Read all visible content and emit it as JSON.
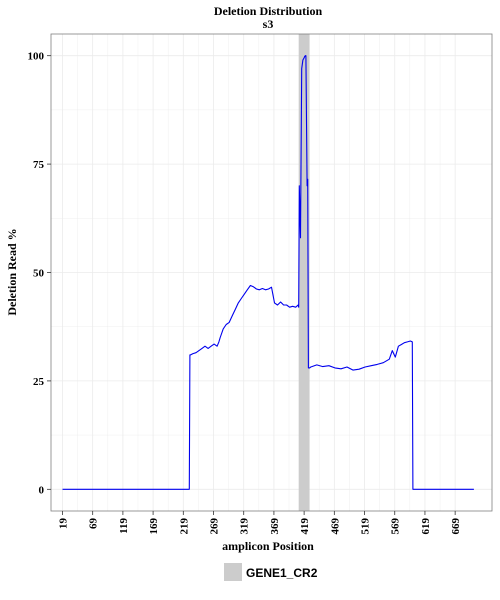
{
  "chart_data": {
    "type": "line",
    "title": "Deletion Distribution",
    "subtitle": "s3",
    "xlabel": "amplicon Position",
    "ylabel": "Deletion Read %",
    "xlim": [
      0,
      730
    ],
    "ylim": [
      -5,
      105
    ],
    "x_ticks": [
      19,
      69,
      119,
      169,
      219,
      269,
      319,
      369,
      419,
      469,
      519,
      569,
      619,
      669
    ],
    "y_ticks": [
      0,
      25,
      50,
      75,
      100
    ],
    "grid": true,
    "legend_position": "bottom",
    "colors": {
      "line": "#0000ee",
      "region": "#cccccc",
      "grid": "#ebebeb",
      "panel_border": "#7f7f7f"
    },
    "regions": [
      {
        "name": "GENE1_CR2",
        "x_start": 410,
        "x_end": 428
      }
    ],
    "series": [
      {
        "name": "",
        "x": [
          19,
          100,
          200,
          229,
          230,
          231,
          235,
          240,
          245,
          250,
          255,
          260,
          265,
          270,
          275,
          278,
          280,
          285,
          290,
          295,
          300,
          305,
          310,
          315,
          320,
          325,
          330,
          335,
          340,
          345,
          350,
          355,
          360,
          365,
          370,
          375,
          380,
          385,
          390,
          395,
          400,
          405,
          409,
          410,
          411,
          413,
          415,
          417,
          419,
          420,
          421,
          422,
          424,
          425,
          426,
          428,
          430,
          440,
          450,
          460,
          470,
          480,
          490,
          500,
          510,
          520,
          530,
          540,
          550,
          560,
          565,
          570,
          575,
          580,
          585,
          590,
          595,
          598,
          599,
          600,
          610,
          650,
          700
        ],
        "y": [
          0,
          0,
          0,
          0,
          31,
          31,
          31.3,
          31.5,
          32,
          32.5,
          33,
          32.5,
          33,
          33.5,
          33,
          34,
          35,
          37,
          38,
          38.5,
          40,
          41.5,
          43,
          44,
          45,
          46,
          47,
          46.7,
          46.2,
          46,
          46.3,
          46,
          46.2,
          46.6,
          43,
          42.5,
          43.2,
          42.5,
          42.5,
          42,
          42.2,
          42,
          42.5,
          42,
          70,
          58,
          97,
          99,
          99.5,
          99.8,
          100,
          100,
          70,
          71.5,
          28,
          28,
          28.2,
          28.7,
          28.3,
          28.5,
          28,
          27.8,
          28.2,
          27.5,
          27.7,
          28.2,
          28.5,
          28.8,
          29.2,
          30,
          32,
          30.5,
          33,
          33.4,
          33.8,
          34,
          34.2,
          34,
          0,
          0,
          0,
          0,
          0
        ]
      }
    ],
    "legend": [
      {
        "label": "GENE1_CR2",
        "swatch": "region"
      }
    ]
  }
}
